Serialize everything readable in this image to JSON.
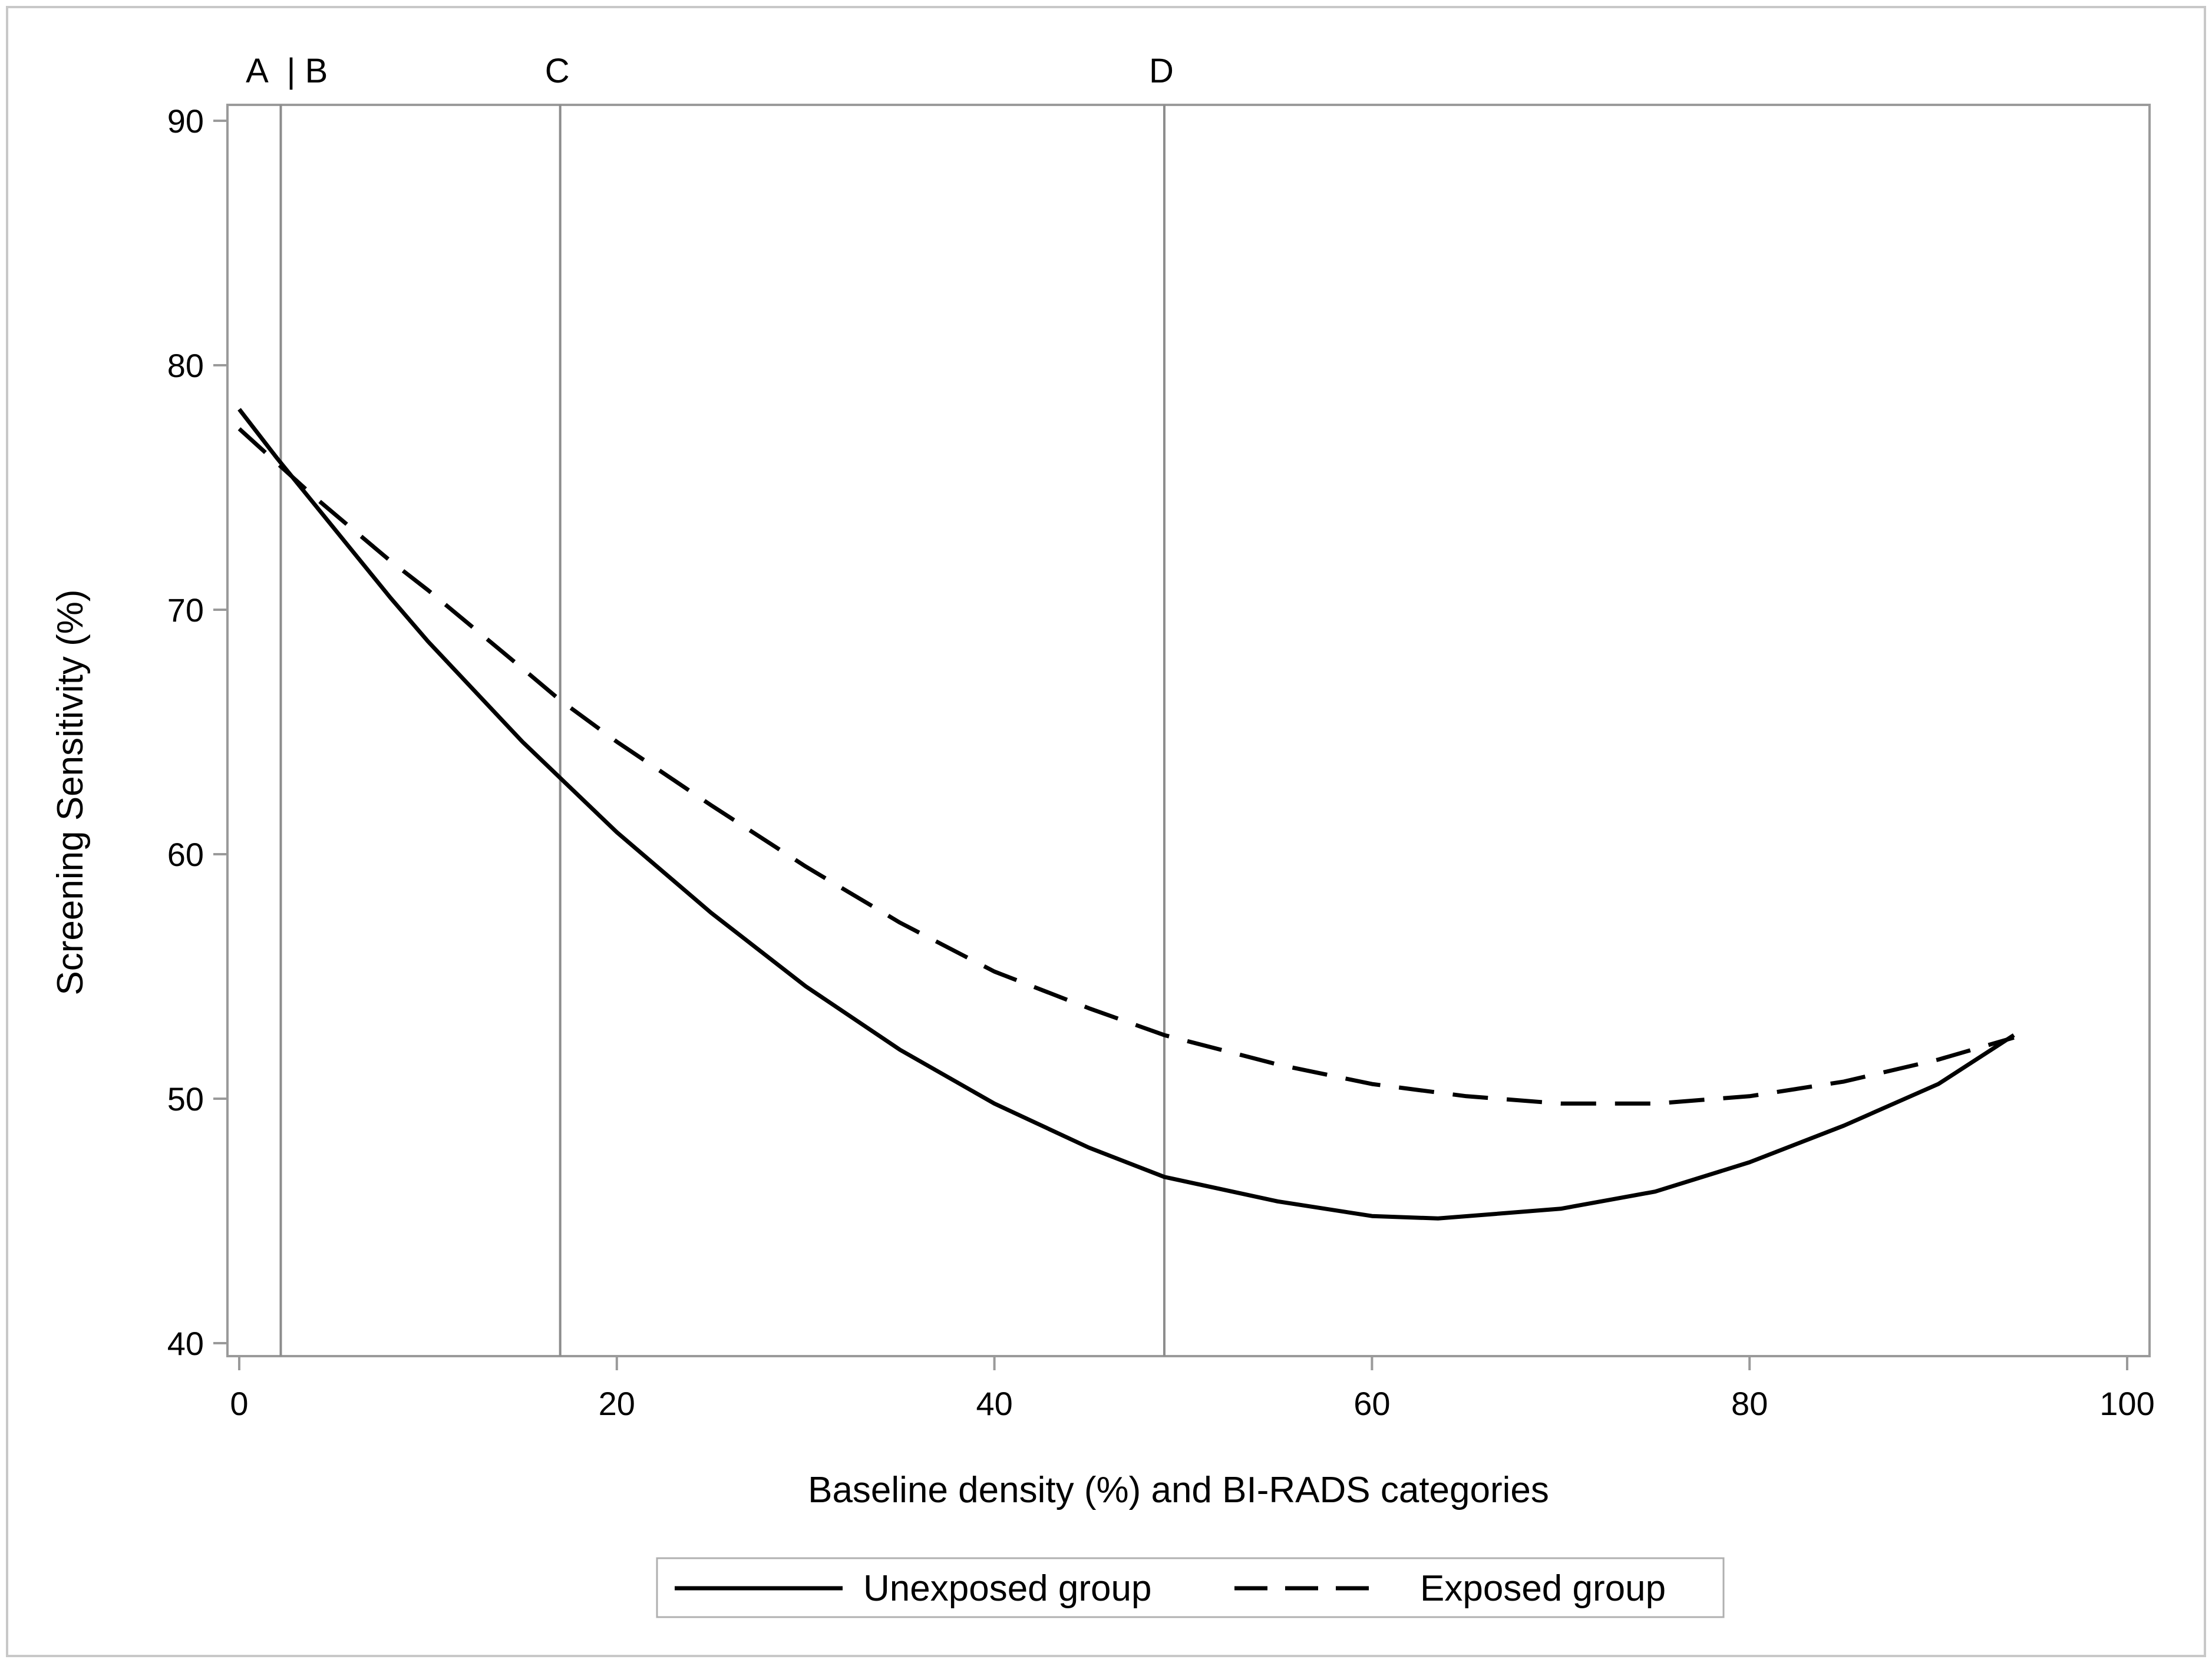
{
  "chart_data": {
    "type": "line",
    "title": "",
    "xlabel": "Baseline density (%) and BI-RADS categories",
    "ylabel": "Screening Sensitivity (%)",
    "xlim": [
      0,
      100
    ],
    "ylim": [
      40,
      90
    ],
    "xticks": [
      0,
      20,
      40,
      60,
      80,
      100
    ],
    "yticks": [
      40,
      50,
      60,
      70,
      80,
      90
    ],
    "grid": false,
    "legend_position": "bottom",
    "reference_lines": [
      {
        "name": "A | B",
        "x": 2.2,
        "label_left": "A",
        "label_right": "| B"
      },
      {
        "name": "C",
        "x": 17,
        "label": "C"
      },
      {
        "name": "D",
        "x": 49,
        "label": "D"
      }
    ],
    "series": [
      {
        "name": "Unexposed group",
        "style": "solid",
        "x": [
          0,
          2,
          4,
          6,
          8,
          10,
          15,
          20,
          25,
          30,
          35,
          40,
          45,
          49,
          55,
          60,
          63.5,
          70,
          75,
          80,
          85,
          90,
          94
        ],
        "y": [
          78.2,
          76.2,
          74.3,
          72.4,
          70.5,
          68.7,
          64.6,
          60.9,
          57.6,
          54.6,
          52.0,
          49.8,
          48.0,
          46.8,
          45.8,
          45.2,
          45.1,
          45.5,
          46.2,
          47.4,
          48.9,
          50.6,
          52.6
        ]
      },
      {
        "name": "Exposed group",
        "style": "dashed",
        "x": [
          0,
          2,
          4,
          6,
          8,
          10,
          15,
          17,
          20,
          25,
          30,
          35,
          40,
          45,
          49,
          55,
          60,
          65,
          70,
          75,
          80,
          85,
          90,
          94
        ],
        "y": [
          77.4,
          76.0,
          74.6,
          73.3,
          72.0,
          70.8,
          67.6,
          66.3,
          64.6,
          62.0,
          59.5,
          57.2,
          55.2,
          53.7,
          52.6,
          51.4,
          50.6,
          50.1,
          49.8,
          49.8,
          50.1,
          50.7,
          51.6,
          52.5
        ]
      }
    ]
  }
}
